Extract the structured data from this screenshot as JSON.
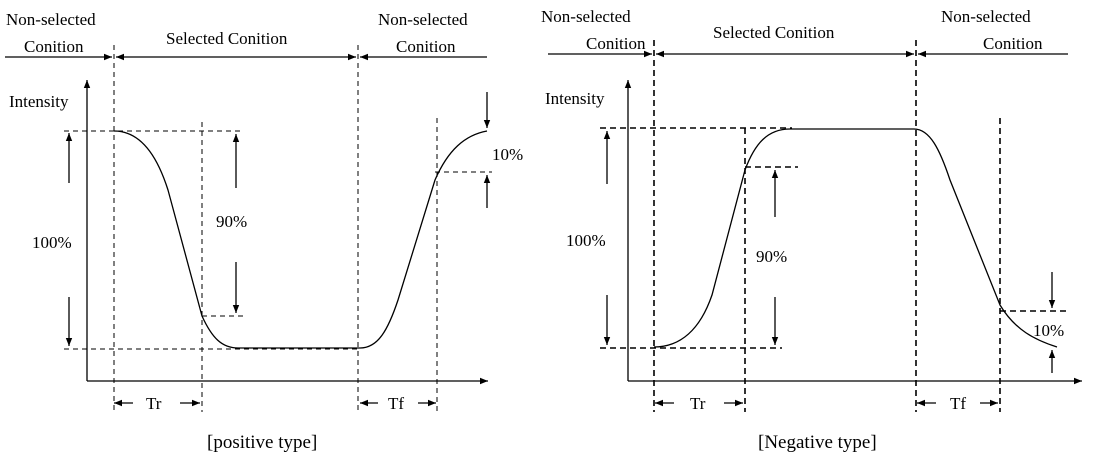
{
  "diagram_positive": {
    "phase_left_line1": "Non-selected",
    "phase_left_line2": "Conition",
    "phase_mid": "Selected Conition",
    "phase_right_line1": "Non-selected",
    "phase_right_line2": "Conition",
    "y_axis_label": "Intensity",
    "pct_full": "100%",
    "pct_ninety": "90%",
    "pct_ten": "10%",
    "rise_time": "Tr",
    "fall_time": "Tf",
    "caption": "[positive type]"
  },
  "diagram_negative": {
    "phase_left_line1": "Non-selected",
    "phase_left_line2": "Conition",
    "phase_mid": "Selected Conition",
    "phase_right_line1": "Non-selected",
    "phase_right_line2": "Conition",
    "y_axis_label": "Intensity",
    "pct_full": "100%",
    "pct_ninety": "90%",
    "pct_ten": "10%",
    "rise_time": "Tr",
    "fall_time": "Tf",
    "caption": "[Negative type]"
  }
}
